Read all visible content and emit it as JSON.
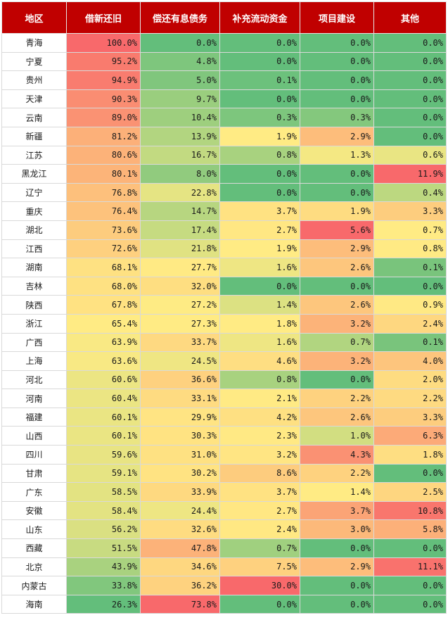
{
  "colors": {
    "header_bg": "#c00000",
    "high": "#f8696b",
    "mid": "#ffeb84",
    "low": "#63be7b"
  },
  "chart_data": {
    "type": "table",
    "columns": [
      "地区",
      "借新还旧",
      "偿还有息债务",
      "补充流动资金",
      "项目建设",
      "其他"
    ],
    "rows": [
      [
        "青海",
        "100.0%",
        "0.0%",
        "0.0%",
        "0.0%",
        "0.0%"
      ],
      [
        "宁夏",
        "95.2%",
        "4.8%",
        "0.0%",
        "0.0%",
        "0.0%"
      ],
      [
        "贵州",
        "94.9%",
        "5.0%",
        "0.1%",
        "0.0%",
        "0.0%"
      ],
      [
        "天津",
        "90.3%",
        "9.7%",
        "0.0%",
        "0.0%",
        "0.0%"
      ],
      [
        "云南",
        "89.0%",
        "10.4%",
        "0.3%",
        "0.3%",
        "0.0%"
      ],
      [
        "新疆",
        "81.2%",
        "13.9%",
        "1.9%",
        "2.9%",
        "0.0%"
      ],
      [
        "江苏",
        "80.6%",
        "16.7%",
        "0.8%",
        "1.3%",
        "0.6%"
      ],
      [
        "黑龙江",
        "80.1%",
        "8.0%",
        "0.0%",
        "0.0%",
        "11.9%"
      ],
      [
        "辽宁",
        "76.8%",
        "22.8%",
        "0.0%",
        "0.0%",
        "0.4%"
      ],
      [
        "重庆",
        "76.4%",
        "14.7%",
        "3.7%",
        "1.9%",
        "3.3%"
      ],
      [
        "湖北",
        "73.6%",
        "17.4%",
        "2.7%",
        "5.6%",
        "0.7%"
      ],
      [
        "江西",
        "72.6%",
        "21.8%",
        "1.9%",
        "2.9%",
        "0.8%"
      ],
      [
        "湖南",
        "68.1%",
        "27.7%",
        "1.6%",
        "2.6%",
        "0.1%"
      ],
      [
        "吉林",
        "68.0%",
        "32.0%",
        "0.0%",
        "0.0%",
        "0.0%"
      ],
      [
        "陕西",
        "67.8%",
        "27.2%",
        "1.4%",
        "2.6%",
        "0.9%"
      ],
      [
        "浙江",
        "65.4%",
        "27.3%",
        "1.8%",
        "3.2%",
        "2.4%"
      ],
      [
        "广西",
        "63.9%",
        "33.7%",
        "1.6%",
        "0.7%",
        "0.1%"
      ],
      [
        "上海",
        "63.6%",
        "24.5%",
        "4.6%",
        "3.2%",
        "4.0%"
      ],
      [
        "河北",
        "60.6%",
        "36.6%",
        "0.8%",
        "0.0%",
        "2.0%"
      ],
      [
        "河南",
        "60.4%",
        "33.1%",
        "2.1%",
        "2.2%",
        "2.2%"
      ],
      [
        "福建",
        "60.1%",
        "29.9%",
        "4.2%",
        "2.6%",
        "3.3%"
      ],
      [
        "山西",
        "60.1%",
        "30.3%",
        "2.3%",
        "1.0%",
        "6.3%"
      ],
      [
        "四川",
        "59.6%",
        "31.0%",
        "3.2%",
        "4.3%",
        "1.8%"
      ],
      [
        "甘肃",
        "59.1%",
        "30.2%",
        "8.6%",
        "2.2%",
        "0.0%"
      ],
      [
        "广东",
        "58.5%",
        "33.9%",
        "3.7%",
        "1.4%",
        "2.5%"
      ],
      [
        "安徽",
        "58.4%",
        "24.4%",
        "2.7%",
        "3.7%",
        "10.8%"
      ],
      [
        "山东",
        "56.2%",
        "32.6%",
        "2.4%",
        "3.0%",
        "5.8%"
      ],
      [
        "西藏",
        "51.5%",
        "47.8%",
        "0.7%",
        "0.0%",
        "0.0%"
      ],
      [
        "北京",
        "43.9%",
        "34.6%",
        "7.5%",
        "2.9%",
        "11.1%"
      ],
      [
        "内蒙古",
        "33.8%",
        "36.2%",
        "30.0%",
        "0.0%",
        "0.0%"
      ],
      [
        "海南",
        "26.3%",
        "73.8%",
        "0.0%",
        "0.0%",
        "0.0%"
      ]
    ]
  }
}
